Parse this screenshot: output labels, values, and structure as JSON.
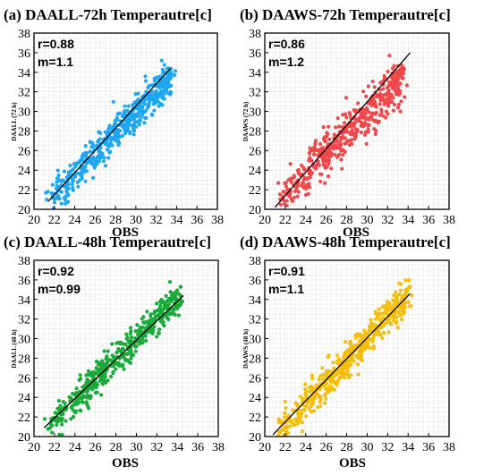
{
  "chart_data": [
    {
      "type": "scatter",
      "title": "(a) DAALL-72h Temperautre[c]",
      "xlabel": "OBS",
      "ylabel": "DAALL (72 h)",
      "r_text": "r=0.88",
      "m_text": "m=1.1",
      "slope": 1.1,
      "color": "#1ea7f0",
      "xlim": [
        20,
        38
      ],
      "ylim": [
        20,
        38
      ],
      "xticks": [
        "20",
        "22",
        "24",
        "26",
        "28",
        "30",
        "32",
        "34",
        "36",
        "38"
      ],
      "yticks": [
        "20",
        "22",
        "24",
        "26",
        "28",
        "30",
        "32",
        "34",
        "36",
        "38"
      ],
      "grid": true,
      "fit_line": {
        "x": [
          21.4,
          33.4
        ],
        "y": [
          20.8,
          34.4
        ]
      },
      "points": {
        "x_range": [
          21.5,
          33.5
        ],
        "y_range": [
          21.0,
          33.5
        ],
        "spread": 0.9
      }
    },
    {
      "type": "scatter",
      "title": "(b) DAAWS-72h Temperautre[c]",
      "xlabel": "OBS",
      "ylabel": "DAAWS (72 h)",
      "r_text": "r=0.86",
      "m_text": "m=1.2",
      "slope": 1.2,
      "color": "#f0484a",
      "xlim": [
        20,
        38
      ],
      "ylim": [
        20,
        38
      ],
      "xticks": [
        "20",
        "22",
        "24",
        "26",
        "28",
        "30",
        "32",
        "34",
        "36",
        "38"
      ],
      "yticks": [
        "20",
        "22",
        "24",
        "26",
        "28",
        "30",
        "32",
        "34",
        "36",
        "38"
      ],
      "grid": true,
      "fit_line": {
        "x": [
          21.0,
          34.2
        ],
        "y": [
          20.2,
          36.0
        ]
      },
      "points": {
        "x_range": [
          21.5,
          33.5
        ],
        "y_range": [
          21.0,
          33.5
        ],
        "spread": 1.1
      }
    },
    {
      "type": "scatter",
      "title": "(c) DAALL-48h Temperautre[c]",
      "xlabel": "OBS",
      "ylabel": "DAALL (48 h)",
      "r_text": "r=0.92",
      "m_text": "m=0.99",
      "slope": 0.99,
      "color": "#1aaa3a",
      "xlim": [
        20,
        38
      ],
      "ylim": [
        20,
        38
      ],
      "xticks": [
        "20",
        "22",
        "24",
        "26",
        "28",
        "30",
        "32",
        "34",
        "36",
        "38"
      ],
      "yticks": [
        "20",
        "22",
        "24",
        "26",
        "28",
        "30",
        "32",
        "34",
        "36",
        "38"
      ],
      "grid": true,
      "fit_line": {
        "x": [
          21.0,
          34.6
        ],
        "y": [
          20.9,
          34.4
        ]
      },
      "points": {
        "x_range": [
          21.5,
          34.3
        ],
        "y_range": [
          21.0,
          34.5
        ],
        "spread": 0.8
      }
    },
    {
      "type": "scatter",
      "title": "(d) DAAWS-48h Temperautre[c]",
      "xlabel": "OBS",
      "ylabel": "DAAWS (48 h)",
      "r_text": "r=0.91",
      "m_text": "m=1.1",
      "slope": 1.1,
      "color": "#f4be0c",
      "xlim": [
        20,
        38
      ],
      "ylim": [
        20,
        38
      ],
      "xticks": [
        "20",
        "22",
        "24",
        "26",
        "28",
        "30",
        "32",
        "34",
        "36",
        "38"
      ],
      "yticks": [
        "20",
        "22",
        "24",
        "26",
        "28",
        "30",
        "32",
        "34",
        "36",
        "38"
      ],
      "grid": true,
      "fit_line": {
        "x": [
          20.8,
          34.2
        ],
        "y": [
          20.2,
          34.6
        ]
      },
      "points": {
        "x_range": [
          21.5,
          34.0
        ],
        "y_range": [
          20.5,
          34.5
        ],
        "spread": 0.9
      }
    }
  ]
}
